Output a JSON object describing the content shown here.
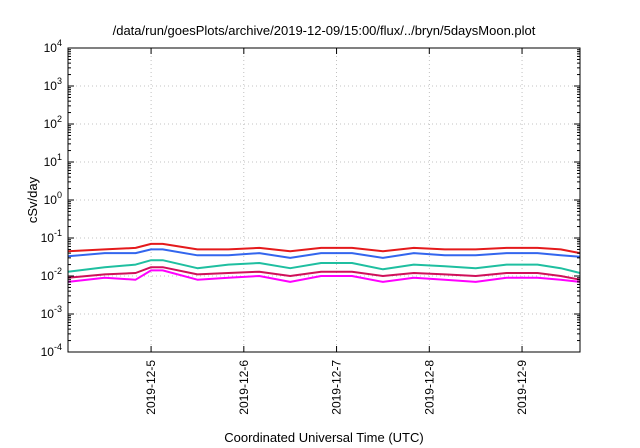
{
  "chart_data": {
    "type": "line",
    "title": "/data/run/goesPlots/archive/2019-12-09/15:00/flux/../bryn/5daysMoon.plot",
    "xlabel": "Coordinated Universal Time (UTC)",
    "ylabel": "cSv/day",
    "x_scale": "time",
    "y_scale": "log",
    "xlim": [
      "2019-12-04T02:30",
      "2019-12-09T15:00"
    ],
    "ylim": [
      0.0001,
      10000
    ],
    "grid": true,
    "legend": "none",
    "x_ticks": [
      "2019-12-5",
      "2019-12-6",
      "2019-12-7",
      "2019-12-8",
      "2019-12-9"
    ],
    "y_ticks": [
      {
        "value": 0.0001,
        "base": "10",
        "exp": "-4"
      },
      {
        "value": 0.001,
        "base": "10",
        "exp": "-3"
      },
      {
        "value": 0.01,
        "base": "10",
        "exp": "-2"
      },
      {
        "value": 0.1,
        "base": "10",
        "exp": "-1"
      },
      {
        "value": 1,
        "base": "10",
        "exp": "0"
      },
      {
        "value": 10,
        "base": "10",
        "exp": "1"
      },
      {
        "value": 100,
        "base": "10",
        "exp": "2"
      },
      {
        "value": 1000,
        "base": "10",
        "exp": "3"
      },
      {
        "value": 10000,
        "base": "10",
        "exp": "4"
      }
    ],
    "series": [
      {
        "color": "#e41a1c",
        "x": [
          "2019-12-04T02:30",
          "2019-12-04T12:00",
          "2019-12-04T20:00",
          "2019-12-05T00:00",
          "2019-12-05T03:00",
          "2019-12-05T12:00",
          "2019-12-05T20:00",
          "2019-12-06T04:00",
          "2019-12-06T12:00",
          "2019-12-06T20:00",
          "2019-12-07T04:00",
          "2019-12-07T12:00",
          "2019-12-07T20:00",
          "2019-12-08T04:00",
          "2019-12-08T12:00",
          "2019-12-08T20:00",
          "2019-12-09T04:00",
          "2019-12-09T10:00",
          "2019-12-09T15:00"
        ],
        "y": [
          0.045,
          0.05,
          0.055,
          0.07,
          0.07,
          0.05,
          0.05,
          0.055,
          0.045,
          0.055,
          0.055,
          0.045,
          0.055,
          0.05,
          0.05,
          0.055,
          0.055,
          0.05,
          0.04
        ]
      },
      {
        "color": "#3366ee",
        "x": [
          "2019-12-04T02:30",
          "2019-12-04T12:00",
          "2019-12-04T20:00",
          "2019-12-05T00:00",
          "2019-12-05T03:00",
          "2019-12-05T12:00",
          "2019-12-05T20:00",
          "2019-12-06T04:00",
          "2019-12-06T12:00",
          "2019-12-06T20:00",
          "2019-12-07T04:00",
          "2019-12-07T12:00",
          "2019-12-07T20:00",
          "2019-12-08T04:00",
          "2019-12-08T12:00",
          "2019-12-08T20:00",
          "2019-12-09T04:00",
          "2019-12-09T10:00",
          "2019-12-09T15:00"
        ],
        "y": [
          0.033,
          0.04,
          0.04,
          0.05,
          0.05,
          0.035,
          0.035,
          0.04,
          0.03,
          0.04,
          0.04,
          0.03,
          0.04,
          0.035,
          0.035,
          0.04,
          0.04,
          0.035,
          0.032
        ]
      },
      {
        "color": "#1fbfa0",
        "x": [
          "2019-12-04T02:30",
          "2019-12-04T12:00",
          "2019-12-04T20:00",
          "2019-12-05T00:00",
          "2019-12-05T03:00",
          "2019-12-05T12:00",
          "2019-12-05T20:00",
          "2019-12-06T04:00",
          "2019-12-06T12:00",
          "2019-12-06T20:00",
          "2019-12-07T04:00",
          "2019-12-07T12:00",
          "2019-12-07T20:00",
          "2019-12-08T04:00",
          "2019-12-08T12:00",
          "2019-12-08T20:00",
          "2019-12-09T04:00",
          "2019-12-09T10:00",
          "2019-12-09T15:00"
        ],
        "y": [
          0.013,
          0.017,
          0.02,
          0.026,
          0.026,
          0.016,
          0.02,
          0.022,
          0.016,
          0.022,
          0.022,
          0.015,
          0.02,
          0.018,
          0.016,
          0.02,
          0.02,
          0.016,
          0.012
        ]
      },
      {
        "color": "#d0105a",
        "x": [
          "2019-12-04T02:30",
          "2019-12-04T12:00",
          "2019-12-04T20:00",
          "2019-12-05T00:00",
          "2019-12-05T03:00",
          "2019-12-05T12:00",
          "2019-12-05T20:00",
          "2019-12-06T04:00",
          "2019-12-06T12:00",
          "2019-12-06T20:00",
          "2019-12-07T04:00",
          "2019-12-07T12:00",
          "2019-12-07T20:00",
          "2019-12-08T04:00",
          "2019-12-08T12:00",
          "2019-12-08T20:00",
          "2019-12-09T04:00",
          "2019-12-09T10:00",
          "2019-12-09T15:00"
        ],
        "y": [
          0.009,
          0.011,
          0.012,
          0.017,
          0.017,
          0.011,
          0.012,
          0.013,
          0.01,
          0.013,
          0.013,
          0.01,
          0.012,
          0.011,
          0.01,
          0.012,
          0.012,
          0.01,
          0.008
        ]
      },
      {
        "color": "#ff00ff",
        "x": [
          "2019-12-04T02:30",
          "2019-12-04T12:00",
          "2019-12-04T20:00",
          "2019-12-05T00:00",
          "2019-12-05T03:00",
          "2019-12-05T12:00",
          "2019-12-05T20:00",
          "2019-12-06T04:00",
          "2019-12-06T12:00",
          "2019-12-06T20:00",
          "2019-12-07T04:00",
          "2019-12-07T12:00",
          "2019-12-07T20:00",
          "2019-12-08T04:00",
          "2019-12-08T12:00",
          "2019-12-08T20:00",
          "2019-12-09T04:00",
          "2019-12-09T10:00",
          "2019-12-09T15:00"
        ],
        "y": [
          0.007,
          0.009,
          0.008,
          0.014,
          0.014,
          0.008,
          0.009,
          0.01,
          0.007,
          0.01,
          0.01,
          0.007,
          0.009,
          0.008,
          0.007,
          0.009,
          0.009,
          0.008,
          0.007
        ]
      }
    ]
  }
}
